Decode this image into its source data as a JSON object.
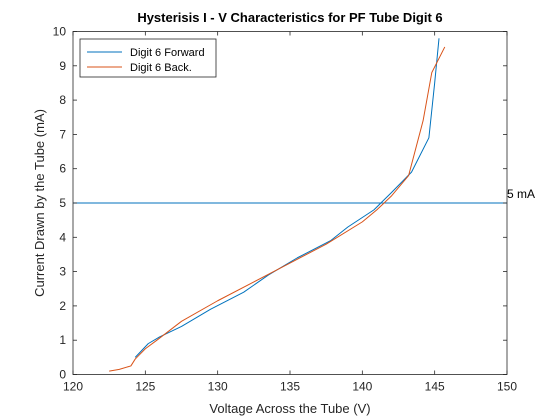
{
  "chart_data": {
    "type": "line",
    "title": "Hysterisis I - V Characteristics for PF Tube Digit 6",
    "xlabel": "Voltage Across the Tube (V)",
    "ylabel": "Current Drawn by the Tube (mA)",
    "xlim": [
      120,
      150
    ],
    "ylim": [
      0,
      10
    ],
    "xticks": [
      120,
      125,
      130,
      135,
      140,
      145,
      150
    ],
    "yticks": [
      0,
      1,
      2,
      3,
      4,
      5,
      6,
      7,
      8,
      9,
      10
    ],
    "grid": false,
    "legend_position": "top-left",
    "series": [
      {
        "name": "Digit 6 Forward",
        "color": "#0072BD",
        "x": [
          124.3,
          125.2,
          126.0,
          127.5,
          129.5,
          131.8,
          133.5,
          135.5,
          137.8,
          139.0,
          140.8,
          142.0,
          143.4,
          144.6,
          145.0,
          145.3
        ],
        "y": [
          0.5,
          0.9,
          1.1,
          1.4,
          1.9,
          2.4,
          2.9,
          3.4,
          3.9,
          4.3,
          4.8,
          5.3,
          5.9,
          6.9,
          8.5,
          9.8
        ]
      },
      {
        "name": "Digit 6 Back.",
        "color": "#D95319",
        "x": [
          122.5,
          123.2,
          124.0,
          124.3,
          125.0,
          125.8,
          127.5,
          130.0,
          132.5,
          135.0,
          137.5,
          140.0,
          141.0,
          142.0,
          143.2,
          144.2,
          144.8,
          145.7
        ],
        "y": [
          0.1,
          0.15,
          0.25,
          0.45,
          0.75,
          1.0,
          1.55,
          2.15,
          2.7,
          3.25,
          3.8,
          4.45,
          4.8,
          5.2,
          5.8,
          7.4,
          8.8,
          9.55
        ]
      }
    ],
    "reference_line": {
      "y": 5,
      "color": "#0072BD",
      "label": "5 mA"
    }
  }
}
